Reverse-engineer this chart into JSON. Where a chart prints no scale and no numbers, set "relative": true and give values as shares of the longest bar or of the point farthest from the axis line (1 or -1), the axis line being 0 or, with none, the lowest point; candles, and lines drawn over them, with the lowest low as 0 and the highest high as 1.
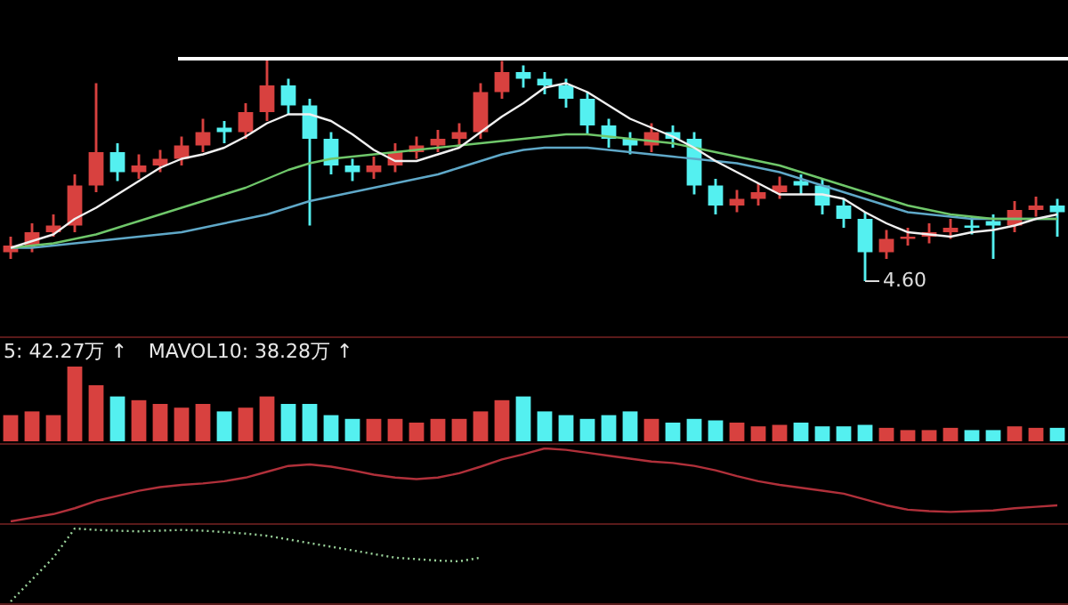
{
  "chart_data": [
    {
      "type": "candlestick",
      "relative": true,
      "categories": [
        null,
        null,
        null,
        null,
        null,
        null,
        null,
        null,
        null,
        null,
        null,
        null,
        null,
        null,
        null,
        null,
        null,
        null,
        null,
        null,
        null,
        null,
        null,
        null,
        null,
        null,
        null,
        null,
        null,
        null,
        null,
        null,
        null,
        null,
        null,
        null,
        null,
        null,
        null,
        null,
        null,
        null,
        null,
        null,
        null,
        null,
        null,
        null,
        null,
        null
      ],
      "ohlc": [
        [
          0.13,
          0.2,
          0.1,
          0.16
        ],
        [
          0.16,
          0.26,
          0.13,
          0.22
        ],
        [
          0.22,
          0.3,
          0.2,
          0.25
        ],
        [
          0.25,
          0.48,
          0.22,
          0.43
        ],
        [
          0.43,
          0.89,
          0.4,
          0.58
        ],
        [
          0.58,
          0.62,
          0.45,
          0.49
        ],
        [
          0.49,
          0.57,
          0.46,
          0.52
        ],
        [
          0.52,
          0.59,
          0.49,
          0.55
        ],
        [
          0.55,
          0.65,
          0.52,
          0.61
        ],
        [
          0.61,
          0.73,
          0.58,
          0.67
        ],
        [
          0.69,
          0.72,
          0.62,
          0.67
        ],
        [
          0.67,
          0.8,
          0.64,
          0.76
        ],
        [
          0.76,
          1.0,
          0.72,
          0.88
        ],
        [
          0.88,
          0.91,
          0.75,
          0.79
        ],
        [
          0.79,
          0.82,
          0.25,
          0.64
        ],
        [
          0.64,
          0.67,
          0.48,
          0.52
        ],
        [
          0.52,
          0.55,
          0.45,
          0.49
        ],
        [
          0.49,
          0.56,
          0.46,
          0.52
        ],
        [
          0.52,
          0.62,
          0.49,
          0.58
        ],
        [
          0.58,
          0.65,
          0.55,
          0.61
        ],
        [
          0.61,
          0.68,
          0.58,
          0.64
        ],
        [
          0.64,
          0.71,
          0.61,
          0.67
        ],
        [
          0.67,
          0.89,
          0.64,
          0.85
        ],
        [
          0.85,
          0.99,
          0.82,
          0.94
        ],
        [
          0.94,
          0.97,
          0.87,
          0.91
        ],
        [
          0.91,
          0.94,
          0.84,
          0.88
        ],
        [
          0.88,
          0.91,
          0.78,
          0.82
        ],
        [
          0.82,
          0.85,
          0.66,
          0.7
        ],
        [
          0.7,
          0.73,
          0.6,
          0.64
        ],
        [
          0.64,
          0.67,
          0.57,
          0.61
        ],
        [
          0.61,
          0.71,
          0.58,
          0.67
        ],
        [
          0.67,
          0.7,
          0.6,
          0.64
        ],
        [
          0.64,
          0.67,
          0.39,
          0.43
        ],
        [
          0.43,
          0.46,
          0.3,
          0.34
        ],
        [
          0.34,
          0.41,
          0.31,
          0.37
        ],
        [
          0.37,
          0.44,
          0.34,
          0.4
        ],
        [
          0.4,
          0.47,
          0.37,
          0.43
        ],
        [
          0.45,
          0.48,
          0.39,
          0.43
        ],
        [
          0.43,
          0.46,
          0.3,
          0.34
        ],
        [
          0.34,
          0.37,
          0.24,
          0.28
        ],
        [
          0.28,
          0.31,
          0,
          0.13
        ],
        [
          0.13,
          0.23,
          0.1,
          0.19
        ],
        [
          0.19,
          0.24,
          0.16,
          0.2
        ],
        [
          0.2,
          0.26,
          0.17,
          0.22
        ],
        [
          0.22,
          0.28,
          0.19,
          0.24
        ],
        [
          0.24,
          0.29,
          0.21,
          0.25
        ],
        [
          0.27,
          0.3,
          0.1,
          0.25
        ],
        [
          0.25,
          0.36,
          0.22,
          0.32
        ],
        [
          0.32,
          0.38,
          0.29,
          0.34
        ],
        [
          0.34,
          0.37,
          0.2,
          0.31
        ]
      ],
      "colors": [
        "#d8413f",
        "#d8413f",
        "#d8413f",
        "#d8413f",
        "#d8413f",
        "#54f0f0",
        "#d8413f",
        "#d8413f",
        "#d8413f",
        "#d8413f",
        "#54f0f0",
        "#d8413f",
        "#d8413f",
        "#54f0f0",
        "#54f0f0",
        "#54f0f0",
        "#54f0f0",
        "#d8413f",
        "#d8413f",
        "#d8413f",
        "#d8413f",
        "#d8413f",
        "#d8413f",
        "#d8413f",
        "#54f0f0",
        "#54f0f0",
        "#54f0f0",
        "#54f0f0",
        "#54f0f0",
        "#54f0f0",
        "#d8413f",
        "#54f0f0",
        "#54f0f0",
        "#54f0f0",
        "#d8413f",
        "#d8413f",
        "#d8413f",
        "#54f0f0",
        "#54f0f0",
        "#54f0f0",
        "#54f0f0",
        "#d8413f",
        "#d8413f",
        "#d8413f",
        "#d8413f",
        "#54f0f0",
        "#54f0f0",
        "#d8413f",
        "#d8413f",
        "#54f0f0"
      ],
      "series": [
        {
          "type": "line",
          "color": "#f0f0f0",
          "values": [
            0.15,
            0.18,
            0.21,
            0.28,
            0.33,
            0.39,
            0.45,
            0.51,
            0.55,
            0.57,
            0.6,
            0.65,
            0.71,
            0.75,
            0.75,
            0.72,
            0.66,
            0.59,
            0.54,
            0.54,
            0.57,
            0.6,
            0.67,
            0.74,
            0.8,
            0.87,
            0.89,
            0.85,
            0.79,
            0.73,
            0.69,
            0.65,
            0.6,
            0.54,
            0.49,
            0.44,
            0.39,
            0.39,
            0.39,
            0.37,
            0.31,
            0.26,
            0.22,
            0.21,
            0.2,
            0.22,
            0.23,
            0.25,
            0.28,
            0.3
          ]
        },
        {
          "type": "line",
          "color": "#6fc76a",
          "values": [
            0.15,
            0.16,
            0.17,
            0.19,
            0.21,
            0.24,
            0.27,
            0.3,
            0.33,
            0.36,
            0.39,
            0.42,
            0.46,
            0.5,
            0.53,
            0.55,
            0.56,
            0.57,
            0.58,
            0.59,
            0.6,
            0.61,
            0.62,
            0.63,
            0.64,
            0.65,
            0.66,
            0.66,
            0.65,
            0.64,
            0.63,
            0.62,
            0.6,
            0.58,
            0.56,
            0.54,
            0.52,
            0.49,
            0.46,
            0.43,
            0.4,
            0.37,
            0.34,
            0.32,
            0.3,
            0.29,
            0.28,
            0.28,
            0.28,
            0.28
          ]
        },
        {
          "type": "line",
          "color": "#5fa8c8",
          "values": [
            0.15,
            0.15,
            0.16,
            0.17,
            0.18,
            0.19,
            0.2,
            0.21,
            0.22,
            0.24,
            0.26,
            0.28,
            0.3,
            0.33,
            0.36,
            0.38,
            0.4,
            0.42,
            0.44,
            0.46,
            0.48,
            0.51,
            0.54,
            0.57,
            0.59,
            0.6,
            0.6,
            0.6,
            0.59,
            0.58,
            0.57,
            0.56,
            0.55,
            0.54,
            0.53,
            0.51,
            0.49,
            0.46,
            0.43,
            0.4,
            0.37,
            0.34,
            0.31,
            0.3,
            0.29,
            0.28,
            0.28,
            0.28,
            0.28,
            0.28
          ]
        }
      ],
      "ref_lines": [
        {
          "axis": "y",
          "value": 1,
          "color": "#ffffff"
        }
      ],
      "annotations": [
        "4.60"
      ]
    },
    {
      "type": "bar",
      "relative": true,
      "categories": [
        null,
        null,
        null,
        null,
        null,
        null,
        null,
        null,
        null,
        null,
        null,
        null,
        null,
        null,
        null,
        null,
        null,
        null,
        null,
        null,
        null,
        null,
        null,
        null,
        null,
        null,
        null,
        null,
        null,
        null,
        null,
        null,
        null,
        null,
        null,
        null,
        null,
        null,
        null,
        null,
        null,
        null,
        null,
        null,
        null,
        null,
        null,
        null,
        null,
        null
      ],
      "values": [
        0.35,
        0.4,
        0.35,
        1.0,
        0.75,
        0.6,
        0.55,
        0.5,
        0.45,
        0.5,
        0.4,
        0.45,
        0.6,
        0.5,
        0.5,
        0.35,
        0.3,
        0.3,
        0.3,
        0.25,
        0.3,
        0.3,
        0.4,
        0.55,
        0.6,
        0.4,
        0.35,
        0.3,
        0.35,
        0.4,
        0.3,
        0.25,
        0.3,
        0.28,
        0.25,
        0.2,
        0.22,
        0.25,
        0.2,
        0.2,
        0.22,
        0.18,
        0.15,
        0.15,
        0.18,
        0.15,
        0.15,
        0.2,
        0.18,
        0.18
      ],
      "colors": [
        "#d8413f",
        "#d8413f",
        "#d8413f",
        "#d8413f",
        "#d8413f",
        "#54f0f0",
        "#d8413f",
        "#d8413f",
        "#d8413f",
        "#d8413f",
        "#54f0f0",
        "#d8413f",
        "#d8413f",
        "#54f0f0",
        "#54f0f0",
        "#54f0f0",
        "#54f0f0",
        "#d8413f",
        "#d8413f",
        "#d8413f",
        "#d8413f",
        "#d8413f",
        "#d8413f",
        "#d8413f",
        "#54f0f0",
        "#54f0f0",
        "#54f0f0",
        "#54f0f0",
        "#54f0f0",
        "#54f0f0",
        "#d8413f",
        "#54f0f0",
        "#54f0f0",
        "#54f0f0",
        "#d8413f",
        "#d8413f",
        "#d8413f",
        "#54f0f0",
        "#54f0f0",
        "#54f0f0",
        "#54f0f0",
        "#d8413f",
        "#d8413f",
        "#d8413f",
        "#d8413f",
        "#54f0f0",
        "#54f0f0",
        "#d8413f",
        "#d8413f",
        "#54f0f0"
      ],
      "annotations": [
        "5: 42.27万 ↑",
        "MAVOL10: 38.28万 ↑"
      ]
    },
    {
      "type": "line",
      "relative": true,
      "line_style": "solid",
      "marker": "none",
      "categories": [
        null,
        null,
        null,
        null,
        null,
        null,
        null,
        null,
        null,
        null,
        null,
        null,
        null,
        null,
        null,
        null,
        null,
        null,
        null,
        null,
        null,
        null,
        null,
        null,
        null,
        null,
        null,
        null,
        null,
        null,
        null,
        null,
        null,
        null,
        null,
        null,
        null,
        null,
        null,
        null,
        null,
        null,
        null,
        null,
        null,
        null,
        null,
        null,
        null,
        null
      ],
      "series": [
        {
          "color": "#b0303a",
          "values": [
            0,
            0.05,
            0.1,
            0.18,
            0.28,
            0.35,
            0.42,
            0.47,
            0.5,
            0.52,
            0.55,
            0.6,
            0.68,
            0.76,
            0.78,
            0.75,
            0.7,
            0.64,
            0.6,
            0.58,
            0.6,
            0.66,
            0.75,
            0.85,
            0.92,
            1.0,
            0.98,
            0.94,
            0.9,
            0.86,
            0.82,
            0.8,
            0.76,
            0.7,
            0.62,
            0.55,
            0.5,
            0.46,
            0.42,
            0.38,
            0.3,
            0.22,
            0.16,
            0.14,
            0.13,
            0.14,
            0.15,
            0.18,
            0.2,
            0.22
          ]
        }
      ]
    },
    {
      "type": "line",
      "relative": true,
      "line_style": "dotted",
      "marker": "none",
      "categories": [
        null,
        null,
        null,
        null,
        null,
        null,
        null,
        null,
        null,
        null,
        null,
        null,
        null,
        null,
        null,
        null,
        null,
        null,
        null,
        null,
        null,
        null,
        null,
        null,
        null,
        null,
        null,
        null,
        null,
        null,
        null,
        null,
        null,
        null,
        null,
        null,
        null,
        null,
        null,
        null,
        null,
        null,
        null,
        null,
        null,
        null,
        null,
        null,
        null,
        null
      ],
      "series": [
        {
          "color": "#9ad29a",
          "values": [
            0,
            0.3,
            0.6,
            1.0,
            0.98,
            0.97,
            0.96,
            0.97,
            0.98,
            0.97,
            0.95,
            0.93,
            0.9,
            0.85,
            0.8,
            0.75,
            0.7,
            0.65,
            0.6,
            0.58,
            0.56,
            0.55,
            0.6,
            null,
            null,
            null,
            null,
            null,
            null,
            null,
            null,
            null,
            null,
            null,
            null,
            null,
            null,
            null,
            null,
            null,
            null,
            null,
            null,
            null,
            null,
            null,
            null,
            null,
            null,
            null
          ]
        }
      ]
    }
  ]
}
